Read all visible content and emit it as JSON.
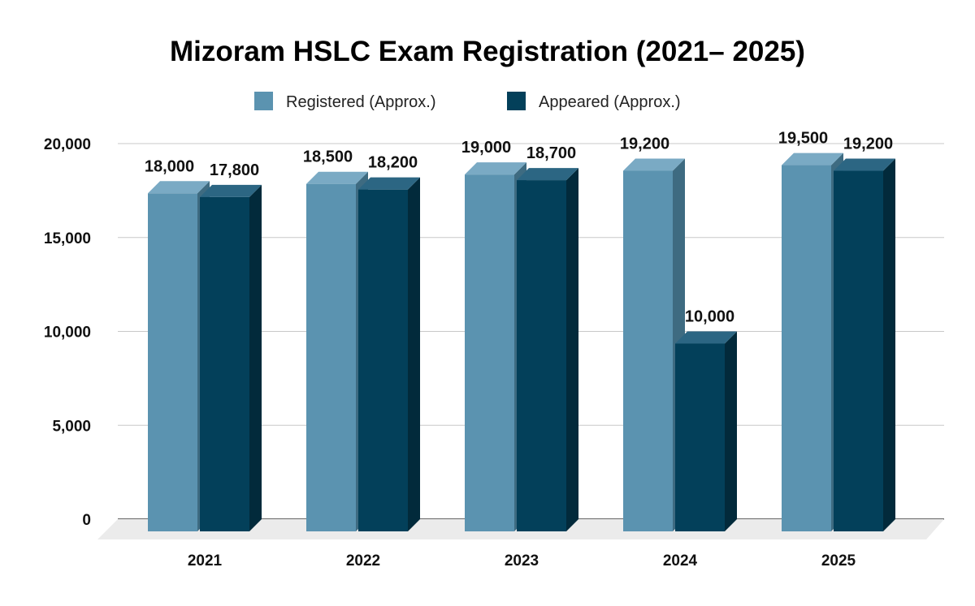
{
  "chart_data": {
    "type": "bar",
    "style": "3d-clustered-column",
    "title": "Mizoram HSLC Exam Registration (2021– 2025)",
    "xlabel": "",
    "ylabel": "",
    "categories": [
      "2021",
      "2022",
      "2023",
      "2024",
      "2025"
    ],
    "series": [
      {
        "name": "Registered (Approx.)",
        "values": [
          18000,
          18500,
          19000,
          19200,
          19500
        ],
        "labels": [
          "18,000",
          "18,500",
          "19,000",
          "19,200",
          "19,500"
        ],
        "color": "#5b93b0"
      },
      {
        "name": "Appeared (Approx.)",
        "values": [
          17800,
          18200,
          18700,
          10000,
          19200
        ],
        "labels": [
          "17,800",
          "18,200",
          "18,700",
          "10,000",
          "19,200"
        ],
        "color": "#03405a"
      }
    ],
    "ylim": [
      0,
      20000
    ],
    "yticks": [
      "0",
      "5,000",
      "10,000",
      "15,000",
      "20,000"
    ],
    "grid": true,
    "legend": "top"
  }
}
